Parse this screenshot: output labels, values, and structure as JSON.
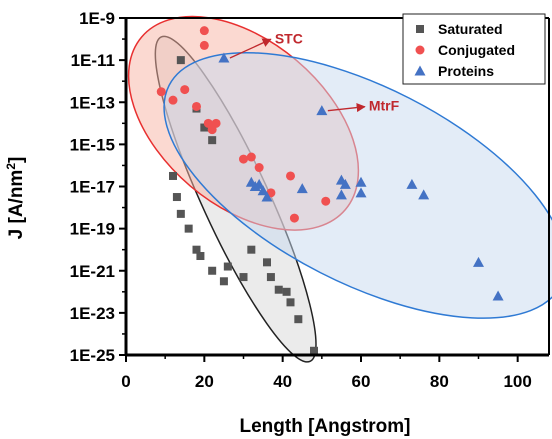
{
  "chart_data": {
    "type": "scatter",
    "xlabel": "Length [Angstrom]",
    "ylabel": "J [A/nm²]",
    "ylabel_main": "J [A/nm",
    "ylabel_sup": "2",
    "ylabel_end": "]",
    "xlim": [
      0,
      108
    ],
    "ylim_log10": [
      -25,
      -9
    ],
    "yscale": "log",
    "grid": false,
    "legend_position": "top-right",
    "x_ticks": [
      0,
      20,
      40,
      60,
      80,
      100
    ],
    "x_tick_labels": [
      "0",
      "20",
      "40",
      "60",
      "80",
      "100"
    ],
    "y_ticks_log10": [
      -9,
      -11,
      -13,
      -15,
      -17,
      -19,
      -21,
      -23,
      -25
    ],
    "y_tick_labels": [
      "1E-9",
      "1E-11",
      "1E-13",
      "1E-15",
      "1E-17",
      "1E-19",
      "1E-21",
      "1E-23",
      "1E-25"
    ],
    "series": [
      {
        "name": "Saturated",
        "marker": "square",
        "color": "#555555",
        "points": [
          [
            14,
            -11.0
          ],
          [
            18,
            -13.3
          ],
          [
            20,
            -14.2
          ],
          [
            22,
            -14.8
          ],
          [
            12,
            -16.5
          ],
          [
            13,
            -17.5
          ],
          [
            14,
            -18.3
          ],
          [
            16,
            -19.0
          ],
          [
            18,
            -20.0
          ],
          [
            19,
            -20.3
          ],
          [
            22,
            -21.0
          ],
          [
            25,
            -21.5
          ],
          [
            26,
            -20.8
          ],
          [
            30,
            -21.3
          ],
          [
            32,
            -20.0
          ],
          [
            36,
            -20.6
          ],
          [
            37,
            -21.3
          ],
          [
            39,
            -21.9
          ],
          [
            41,
            -22.0
          ],
          [
            42,
            -22.5
          ],
          [
            44,
            -23.3
          ],
          [
            48,
            -24.8
          ]
        ]
      },
      {
        "name": "Conjugated",
        "marker": "circle",
        "color": "#f05050",
        "points": [
          [
            20,
            -9.6
          ],
          [
            20,
            -10.3
          ],
          [
            9,
            -12.5
          ],
          [
            12,
            -12.9
          ],
          [
            15,
            -12.4
          ],
          [
            18,
            -13.2
          ],
          [
            21,
            -14.0
          ],
          [
            22,
            -14.3
          ],
          [
            23,
            -14.0
          ],
          [
            30,
            -15.7
          ],
          [
            32,
            -15.6
          ],
          [
            34,
            -16.1
          ],
          [
            37,
            -17.3
          ],
          [
            42,
            -16.5
          ],
          [
            43,
            -18.5
          ],
          [
            51,
            -17.7
          ]
        ]
      },
      {
        "name": "Proteins",
        "marker": "triangle",
        "color": "#4472c4",
        "points": [
          [
            25,
            -10.9
          ],
          [
            50,
            -13.4
          ],
          [
            32,
            -16.8
          ],
          [
            33,
            -17.0
          ],
          [
            34,
            -16.9
          ],
          [
            35,
            -17.2
          ],
          [
            36,
            -17.5
          ],
          [
            45,
            -17.1
          ],
          [
            55,
            -16.7
          ],
          [
            56,
            -16.9
          ],
          [
            55,
            -17.4
          ],
          [
            60,
            -16.8
          ],
          [
            60,
            -17.3
          ],
          [
            73,
            -16.9
          ],
          [
            76,
            -17.4
          ],
          [
            90,
            -20.6
          ],
          [
            95,
            -22.2
          ]
        ]
      }
    ],
    "annotations": [
      {
        "text": "STC",
        "color": "#c0282d",
        "arrow_from": [
          25,
          -10.9
        ],
        "text_at": [
          38,
          -10.2
        ]
      },
      {
        "text": "MtrF",
        "color": "#c0282d",
        "arrow_from": [
          50,
          -13.4
        ],
        "text_at": [
          62,
          -13.4
        ]
      }
    ],
    "regions": [
      {
        "name": "saturated-region",
        "fill": "#d8d8d8",
        "stroke": "#222222",
        "center": [
          28,
          -17.9
        ],
        "span_points": [
          [
            9,
            -9.9
          ],
          [
            47,
            -25.3
          ]
        ],
        "half_width": 8.5
      },
      {
        "name": "conjugated-region",
        "fill": "#f7b4a4",
        "stroke": "#e83030",
        "center": [
          30,
          -14.0
        ],
        "span_points": [
          [
            4,
            -9.9
          ],
          [
            56,
            -18.1
          ]
        ],
        "half_width": 21
      },
      {
        "name": "proteins-region",
        "fill": "#c8daf0",
        "stroke": "#2f7ad4",
        "center": [
          61,
          -16.9
        ],
        "span_points": [
          [
            11,
            -12.2
          ],
          [
            111,
            -21.7
          ]
        ],
        "half_width": 25
      }
    ]
  }
}
